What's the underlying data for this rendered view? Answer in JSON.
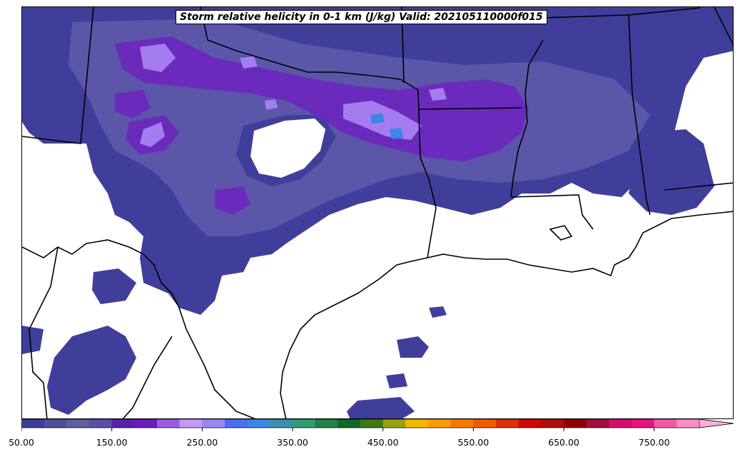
{
  "title": "Storm relative helicity in 0-1 km (J/kg) Valid: 202105110000f015",
  "colorbar": {
    "min": 50,
    "step": 25,
    "extend": "max",
    "colors": [
      "#3b3f9a",
      "#4f4f9c",
      "#5d5fa0",
      "#5b4ea6",
      "#5a21a8",
      "#6a1cb8",
      "#9b5de0",
      "#c59af2",
      "#9c87f5",
      "#4a6ff0",
      "#3b86e6",
      "#3a8fae",
      "#2f9e70",
      "#228048",
      "#0e6b2a",
      "#3e7a10",
      "#9aa00e",
      "#f2b800",
      "#f99a00",
      "#f77a00",
      "#f05a00",
      "#e03000",
      "#cc0800",
      "#b30b0b",
      "#8c0000",
      "#a0103c",
      "#d0106a",
      "#e5147c",
      "#f35aa6",
      "#f98ec6"
    ],
    "tick_labels": [
      "50.00",
      "150.00",
      "250.00",
      "350.00",
      "450.00",
      "550.00",
      "650.00",
      "750.00"
    ],
    "tick_values": [
      50,
      150,
      250,
      350,
      450,
      550,
      650,
      750
    ]
  },
  "colors": {
    "srh_low": "#3f3f9b",
    "srh_mid": "#5b56a8",
    "srh_high": "#6a2bbd",
    "srh_peak": "#a47cf0",
    "srh_max": "#3b86e6",
    "border": "#000000"
  }
}
